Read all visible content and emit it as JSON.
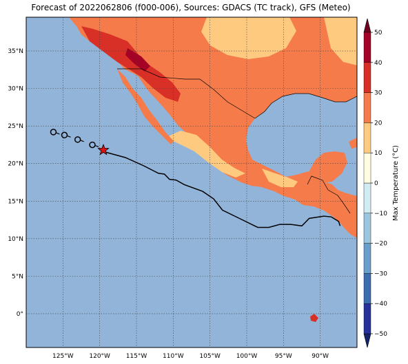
{
  "title": "Forecast of 2022062806 (f000-006), Sources: GDACS (TC track), GFS (Meteo)",
  "map": {
    "lon_range": [
      -130,
      -85
    ],
    "lat_range": [
      -4.5,
      39.5
    ],
    "lon_ticks": [
      {
        "value": -125,
        "label": "125°W"
      },
      {
        "value": -120,
        "label": "120°W"
      },
      {
        "value": -115,
        "label": "115°W"
      },
      {
        "value": -110,
        "label": "110°W"
      },
      {
        "value": -105,
        "label": "105°W"
      },
      {
        "value": -100,
        "label": "100°W"
      },
      {
        "value": -95,
        "label": "95°W"
      },
      {
        "value": -90,
        "label": "90°W"
      }
    ],
    "lat_ticks": [
      {
        "value": 35,
        "label": "35°N"
      },
      {
        "value": 30,
        "label": "30°N"
      },
      {
        "value": 25,
        "label": "25°N"
      },
      {
        "value": 20,
        "label": "20°N"
      },
      {
        "value": 15,
        "label": "15°N"
      },
      {
        "value": 10,
        "label": "10°N"
      },
      {
        "value": 5,
        "label": "5°N"
      },
      {
        "value": 0,
        "label": "0°"
      }
    ],
    "ocean_color": "#92b4d9",
    "grid": true
  },
  "tc_track": {
    "current_position": [
      -119.5,
      21.8
    ],
    "past_positions": [
      [
        -126.3,
        24.2
      ],
      [
        -124.8,
        23.8
      ],
      [
        -123.0,
        23.2
      ],
      [
        -121.0,
        22.5
      ]
    ],
    "forecast_line": [
      [
        -119.5,
        21.6
      ],
      [
        -116.5,
        20.8
      ],
      [
        -114.0,
        19.7
      ],
      [
        -112.0,
        18.7
      ],
      [
        -111.2,
        18.6
      ],
      [
        -110.5,
        17.9
      ],
      [
        -109.6,
        17.8
      ],
      [
        -108.5,
        17.2
      ],
      [
        -106.0,
        16.3
      ],
      [
        -104.5,
        15.3
      ],
      [
        -103.3,
        13.8
      ],
      [
        -101.0,
        12.7
      ],
      [
        -98.5,
        11.5
      ],
      [
        -97.0,
        11.5
      ],
      [
        -95.5,
        11.9
      ],
      [
        -94.0,
        11.9
      ],
      [
        -92.5,
        11.7
      ],
      [
        -91.5,
        12.7
      ],
      [
        -89.5,
        13.0
      ],
      [
        -88.5,
        12.9
      ],
      [
        -87.5,
        12.3
      ],
      [
        -87.3,
        11.7
      ]
    ],
    "star_color": "#dd1111"
  },
  "colorbar": {
    "label": "Max Temperature (°C)",
    "levels": [
      -50,
      -40,
      -30,
      -20,
      -10,
      0,
      10,
      20,
      30,
      40,
      50
    ],
    "tick_labels": [
      "−50",
      "−40",
      "−30",
      "−20",
      "−10",
      "0",
      "10",
      "20",
      "30",
      "40",
      "50"
    ],
    "colors": [
      "#28329a",
      "#3d6fb0",
      "#6a9fcb",
      "#9cc6de",
      "#d2ecf3",
      "#fffce0",
      "#fdca80",
      "#f67b4a",
      "#d83026",
      "#a50326"
    ],
    "under_color": "#16246a",
    "over_color": "#6f0020"
  }
}
